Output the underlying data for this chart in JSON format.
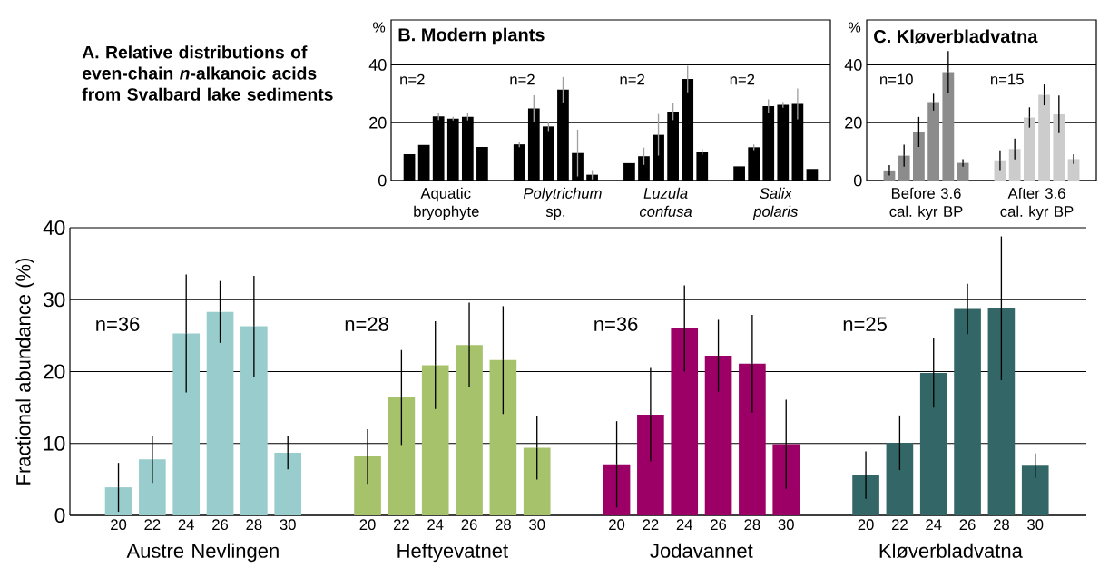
{
  "chart_data": [
    {
      "type": "bar",
      "title": "A. Relative distributions of even-chain *n*-alkanoic acids from Svalbard lake sediments",
      "ylabel": "Fractional abundance (%)",
      "categories": [
        "Austre Nevlingen",
        "Heftyevatnet",
        "Jodavannet",
        "Kløverbladvatna"
      ],
      "series": [
        {
          "name": "20",
          "colors": [
            "#99cccc",
            "#a6c26b",
            "#9c0066",
            "#336666"
          ],
          "values": [
            3.9,
            8.2,
            7.1,
            5.6
          ],
          "errors": [
            3.4,
            3.8,
            6.0,
            3.3
          ]
        },
        {
          "name": "22",
          "colors": [
            "#99cccc",
            "#a6c26b",
            "#9c0066",
            "#336666"
          ],
          "values": [
            7.8,
            16.4,
            14.0,
            10.1
          ],
          "errors": [
            3.3,
            6.6,
            6.5,
            3.8
          ]
        },
        {
          "name": "24",
          "colors": [
            "#99cccc",
            "#a6c26b",
            "#9c0066",
            "#336666"
          ],
          "values": [
            25.3,
            20.9,
            26.0,
            19.8
          ],
          "errors": [
            8.2,
            6.1,
            6.0,
            4.8
          ]
        },
        {
          "name": "26",
          "colors": [
            "#99cccc",
            "#a6c26b",
            "#9c0066",
            "#336666"
          ],
          "values": [
            28.3,
            23.7,
            22.2,
            28.7
          ],
          "errors": [
            4.3,
            5.9,
            5.0,
            3.5
          ]
        },
        {
          "name": "28",
          "colors": [
            "#99cccc",
            "#a6c26b",
            "#9c0066",
            "#336666"
          ],
          "values": [
            26.3,
            21.6,
            21.1,
            28.8
          ],
          "errors": [
            7.0,
            7.5,
            6.8,
            10.0
          ]
        },
        {
          "name": "30",
          "colors": [
            "#99cccc",
            "#a6c26b",
            "#9c0066",
            "#336666"
          ],
          "values": [
            8.7,
            9.4,
            9.9,
            6.9
          ],
          "errors": [
            2.3,
            4.4,
            6.2,
            1.7
          ]
        }
      ],
      "ylim": [
        0,
        40
      ],
      "yticks": [
        0,
        10,
        20,
        30,
        40
      ],
      "grid": "y",
      "annotations": [
        "n=36",
        "n=28",
        "n=36",
        "n=25"
      ]
    },
    {
      "type": "bar",
      "title": "B. Modern plants",
      "ylabel": "%",
      "categories": [
        "Aquatic bryophyte",
        "*Polytrichum* sp.",
        "*Luzula confusa*",
        "*Salix polaris*"
      ],
      "series": [
        {
          "color": "#000000",
          "values": [
            9.1,
            12.5,
            6.0,
            4.9
          ],
          "errors": [
            null,
            1.0,
            null,
            null
          ]
        },
        {
          "color": "#000000",
          "values": [
            12.3,
            24.9,
            8.4,
            11.5
          ],
          "errors": [
            null,
            4.6,
            3.0,
            1.0
          ]
        },
        {
          "color": "#000000",
          "values": [
            22.2,
            18.7,
            15.8,
            25.7
          ],
          "errors": [
            1.3,
            1.6,
            7.2,
            2.4
          ]
        },
        {
          "color": "#000000",
          "values": [
            21.4,
            31.4,
            23.8,
            26.2
          ],
          "errors": [
            0.6,
            4.4,
            2.9,
            1.0
          ]
        },
        {
          "color": "#000000",
          "values": [
            22.0,
            9.5,
            35.1,
            26.5
          ],
          "errors": [
            1.2,
            8.1,
            4.6,
            5.3
          ]
        },
        {
          "color": "#000000",
          "values": [
            11.6,
            2.0,
            9.9,
            4.0
          ],
          "errors": [
            null,
            1.6,
            1.0,
            null
          ]
        }
      ],
      "ylim": [
        0,
        55.5
      ],
      "yticks": [
        0,
        20,
        40
      ],
      "grid": "y",
      "annotations": [
        "n=2",
        "n=2",
        "n=2",
        "n=2"
      ]
    },
    {
      "type": "bar",
      "title": "C. Kløverbladvatna",
      "ylabel": "%",
      "categories": [
        "Before 3.6 cal. kyr BP",
        "After 3.6 cal. kyr BP"
      ],
      "series": [
        {
          "colors": [
            "#8c8c8c",
            "#cccccc"
          ],
          "values": [
            3.5,
            7.0
          ],
          "errors": [
            1.8,
            3.4
          ]
        },
        {
          "colors": [
            "#8c8c8c",
            "#cccccc"
          ],
          "values": [
            8.6,
            10.9
          ],
          "errors": [
            3.8,
            3.6
          ]
        },
        {
          "colors": [
            "#8c8c8c",
            "#cccccc"
          ],
          "values": [
            16.8,
            21.8
          ],
          "errors": [
            5.2,
            3.5
          ]
        },
        {
          "colors": [
            "#8c8c8c",
            "#cccccc"
          ],
          "values": [
            27.1,
            29.6
          ],
          "errors": [
            2.9,
            3.6
          ]
        },
        {
          "colors": [
            "#8c8c8c",
            "#cccccc"
          ],
          "values": [
            37.5,
            22.9
          ],
          "errors": [
            7.3,
            6.5
          ]
        },
        {
          "colors": [
            "#8c8c8c",
            "#cccccc"
          ],
          "values": [
            6.1,
            7.4
          ],
          "errors": [
            1.3,
            1.7
          ]
        }
      ],
      "ylim": [
        0,
        55.5
      ],
      "yticks": [
        0,
        20,
        40
      ],
      "grid": "y",
      "annotations": [
        "n=10",
        "n=15"
      ]
    }
  ]
}
